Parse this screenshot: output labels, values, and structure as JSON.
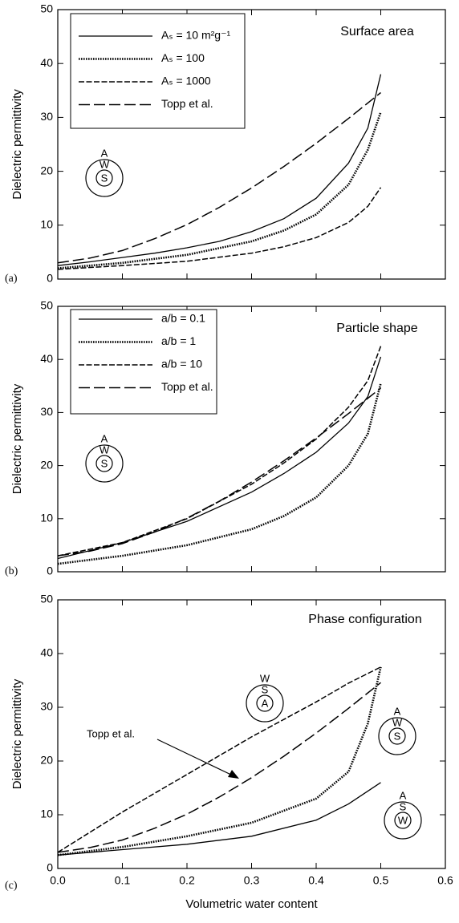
{
  "chart_data": [
    {
      "type": "line",
      "panel_label": "(a)",
      "title": "Surface area",
      "ylabel": "Dielectric permittivity",
      "xlim": [
        0,
        0.6
      ],
      "xticks": [
        0,
        0.1,
        0.2,
        0.3,
        0.4,
        0.5,
        0.6
      ],
      "ylim": [
        0,
        50
      ],
      "yticks": [
        0,
        10,
        20,
        30,
        40,
        50
      ],
      "legend": "upper left",
      "series": [
        {
          "name": "Aₛ = 10 m²g⁻¹",
          "color": "#000000",
          "dash": "solid",
          "x": [
            0,
            0.05,
            0.1,
            0.15,
            0.2,
            0.25,
            0.3,
            0.35,
            0.4,
            0.45,
            0.48,
            0.5
          ],
          "values": [
            2.5,
            3.2,
            4,
            4.8,
            5.8,
            7,
            8.8,
            11.2,
            15,
            21.5,
            28,
            38
          ]
        },
        {
          "name": "Aₛ = 100",
          "color": "#000000",
          "dash": "dotted",
          "x": [
            0,
            0.1,
            0.2,
            0.3,
            0.35,
            0.4,
            0.45,
            0.48,
            0.5
          ],
          "values": [
            2,
            3,
            4.5,
            7,
            9,
            12,
            17.5,
            24,
            31
          ]
        },
        {
          "name": "Aₛ = 1000",
          "color": "#000000",
          "dash": "dashed",
          "x": [
            0,
            0.1,
            0.2,
            0.3,
            0.35,
            0.4,
            0.45,
            0.48,
            0.5
          ],
          "values": [
            1.8,
            2.5,
            3.3,
            4.8,
            6,
            7.7,
            10.5,
            13.5,
            17
          ]
        },
        {
          "name": "Topp et al.",
          "color": "#000000",
          "dash": "longdash",
          "x": [
            0,
            0.05,
            0.1,
            0.15,
            0.2,
            0.25,
            0.3,
            0.35,
            0.4,
            0.45,
            0.5
          ],
          "values": [
            3.0,
            3.9,
            5.3,
            7.5,
            10.1,
            13.3,
            16.9,
            20.9,
            25.2,
            29.8,
            34.6
          ]
        }
      ],
      "diagrams": [
        {
          "outer": "A",
          "middle": "W",
          "inner": "S"
        }
      ]
    },
    {
      "type": "line",
      "panel_label": "(b)",
      "title": "Particle shape",
      "ylabel": "Dielectric permittivity",
      "xlim": [
        0,
        0.6
      ],
      "xticks": [
        0,
        0.1,
        0.2,
        0.3,
        0.4,
        0.5,
        0.6
      ],
      "ylim": [
        0,
        50
      ],
      "yticks": [
        0,
        10,
        20,
        30,
        40,
        50
      ],
      "legend": "upper left",
      "series": [
        {
          "name": "a/b = 0.1",
          "color": "#000000",
          "dash": "solid",
          "x": [
            0,
            0.1,
            0.2,
            0.3,
            0.35,
            0.4,
            0.45,
            0.48,
            0.5
          ],
          "values": [
            2.5,
            5.5,
            9.5,
            15,
            18.5,
            22.5,
            28,
            33,
            40.5
          ]
        },
        {
          "name": "a/b = 1",
          "color": "#000000",
          "dash": "dotted",
          "x": [
            0,
            0.1,
            0.2,
            0.3,
            0.35,
            0.4,
            0.45,
            0.48,
            0.5
          ],
          "values": [
            1.5,
            3,
            5,
            8,
            10.5,
            14,
            20,
            26,
            35.5
          ]
        },
        {
          "name": "a/b = 10",
          "color": "#000000",
          "dash": "dashed",
          "x": [
            0,
            0.1,
            0.2,
            0.3,
            0.35,
            0.4,
            0.45,
            0.48,
            0.5
          ],
          "values": [
            3,
            5.5,
            10,
            16.5,
            20.5,
            25,
            31,
            36,
            42.5
          ]
        },
        {
          "name": "Topp et al.",
          "color": "#000000",
          "dash": "longdash",
          "x": [
            0,
            0.05,
            0.1,
            0.15,
            0.2,
            0.25,
            0.3,
            0.35,
            0.4,
            0.45,
            0.5
          ],
          "values": [
            3.0,
            3.9,
            5.3,
            7.5,
            10.1,
            13.3,
            16.9,
            20.9,
            25.2,
            29.8,
            34.6
          ]
        }
      ],
      "diagrams": [
        {
          "outer": "A",
          "middle": "W",
          "inner": "S"
        }
      ]
    },
    {
      "type": "line",
      "panel_label": "(c)",
      "title": "Phase configuration",
      "ylabel": "Dielectric permittivity",
      "xlabel": "Volumetric water content",
      "xlim": [
        0,
        0.6
      ],
      "xticks": [
        {
          "value": 0,
          "label": "0.0"
        },
        0.1,
        0.2,
        0.3,
        0.4,
        0.5,
        0.6
      ],
      "ylim": [
        0,
        50
      ],
      "yticks": [
        0,
        10,
        20,
        30,
        40,
        50
      ],
      "series": [
        {
          "color": "#000000",
          "dash": "dashed",
          "x": [
            0,
            0.1,
            0.2,
            0.3,
            0.4,
            0.45,
            0.5
          ],
          "values": [
            3,
            10.5,
            17.5,
            24.5,
            31,
            34.5,
            37.5
          ]
        },
        {
          "color": "#000000",
          "dash": "dotted",
          "x": [
            0,
            0.1,
            0.2,
            0.3,
            0.4,
            0.45,
            0.48,
            0.5
          ],
          "values": [
            2.5,
            4,
            6,
            8.5,
            13,
            18,
            27,
            37.5
          ]
        },
        {
          "color": "#000000",
          "dash": "solid",
          "x": [
            0,
            0.1,
            0.2,
            0.3,
            0.4,
            0.45,
            0.5
          ],
          "values": [
            2.5,
            3.5,
            4.5,
            6,
            9,
            12,
            16
          ]
        },
        {
          "color": "#000000",
          "dash": "longdash",
          "x": [
            0,
            0.05,
            0.1,
            0.15,
            0.2,
            0.25,
            0.3,
            0.35,
            0.4,
            0.45,
            0.5
          ],
          "values": [
            3.0,
            3.9,
            5.3,
            7.5,
            10.1,
            13.3,
            16.9,
            20.9,
            25.2,
            29.8,
            34.6
          ]
        }
      ],
      "annotations": [
        {
          "text": "Topp et al."
        }
      ],
      "diagrams": [
        {
          "outer": "W",
          "middle": "S",
          "inner": "A"
        },
        {
          "outer": "A",
          "middle": "W",
          "inner": "S"
        },
        {
          "outer": "A",
          "middle": "S",
          "inner": "W"
        }
      ]
    }
  ]
}
